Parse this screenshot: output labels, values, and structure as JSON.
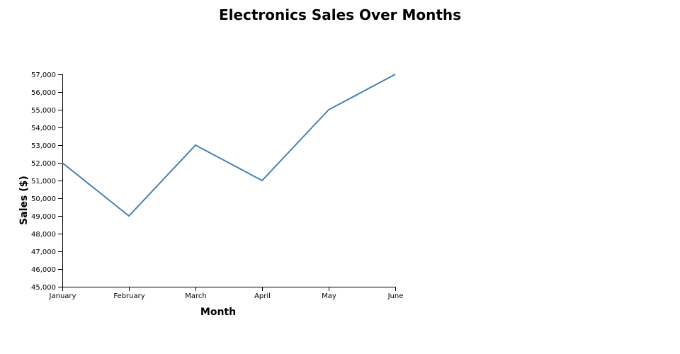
{
  "chart_data": {
    "type": "line",
    "title": "Electronics Sales Over Months",
    "xlabel": "Month",
    "ylabel": "Sales ($)",
    "categories": [
      "January",
      "February",
      "March",
      "April",
      "May",
      "June"
    ],
    "values": [
      52000,
      49000,
      53000,
      51000,
      55000,
      57000
    ],
    "ylim": [
      45000,
      57000
    ],
    "yticks": [
      "45,000",
      "46,000",
      "47,000",
      "48,000",
      "49,000",
      "50,000",
      "51,000",
      "52,000",
      "53,000",
      "54,000",
      "55,000",
      "56,000",
      "57,000"
    ],
    "grid": false,
    "line_color": "#4682b4"
  }
}
